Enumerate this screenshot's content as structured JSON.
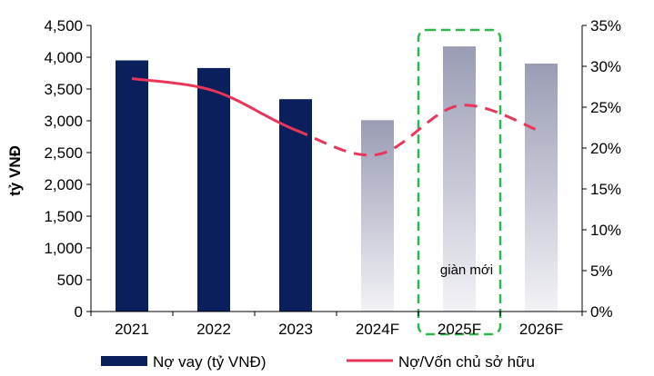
{
  "chart_data": {
    "type": "bar",
    "categories": [
      "2021",
      "2022",
      "2023",
      "2024F",
      "2025F",
      "2026F"
    ],
    "series": [
      {
        "name": "Nợ vay (tỷ VNĐ)",
        "kind": "bar",
        "axis": "left",
        "values": [
          3950,
          3830,
          3340,
          3010,
          4170,
          3900
        ],
        "forecast": [
          false,
          false,
          false,
          true,
          true,
          true
        ]
      },
      {
        "name": "Nợ/Vốn chủ sở hữu",
        "kind": "line",
        "axis": "right",
        "values": [
          28.5,
          27.0,
          22.2,
          19.2,
          25.2,
          22.0
        ],
        "forecast": [
          false,
          false,
          false,
          true,
          true,
          true
        ]
      }
    ],
    "ylabel": "tỷ VNĐ",
    "ylim": [
      0,
      4500
    ],
    "yticks": [
      "0",
      "500",
      "1,000",
      "1,500",
      "2,000",
      "2,500",
      "3,000",
      "3,500",
      "4,000",
      "4,500"
    ],
    "y2lim": [
      0,
      35
    ],
    "y2ticks": [
      "0%",
      "5%",
      "10%",
      "15%",
      "20%",
      "25%",
      "30%",
      "35%"
    ],
    "annotation": {
      "text": "giàn mới",
      "category": "2025F"
    },
    "legend_position": "bottom",
    "grid": false,
    "colors": {
      "bar_actual": "#0a1f5c",
      "bar_forecast_top": "#9a9cb4",
      "bar_forecast_bottom": "#f2f2f6",
      "line": "#e8365a",
      "highlight_box": "#2db84b"
    }
  }
}
